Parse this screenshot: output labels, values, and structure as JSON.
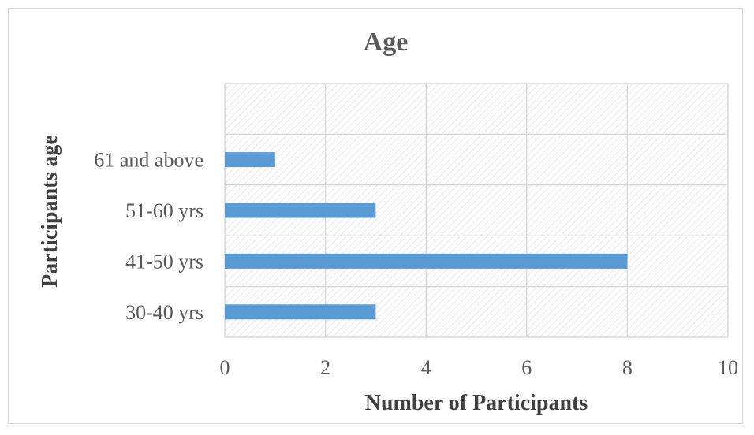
{
  "chart_data": {
    "type": "bar",
    "orientation": "horizontal",
    "title": "Age",
    "xlabel": "Number of Participants",
    "ylabel": "Participants age",
    "categories": [
      "30-40 yrs",
      "41-50 yrs",
      "51-60 yrs",
      "61 and above"
    ],
    "values": [
      3,
      8,
      3,
      1
    ],
    "xlim": [
      0,
      10
    ],
    "xticks": [
      "0",
      "2",
      "4",
      "6",
      "8",
      "10"
    ],
    "grid": true,
    "legend": "none",
    "colors": {
      "bar": "#5b9bd5",
      "plot_pattern": "#e0e0e0"
    }
  }
}
